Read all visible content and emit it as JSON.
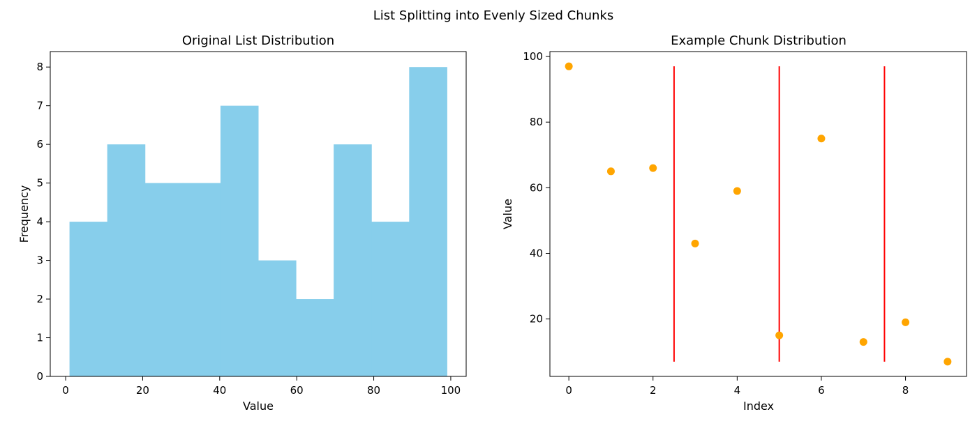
{
  "figure": {
    "suptitle": "List Splitting into Evenly Sized Chunks"
  },
  "colors": {
    "histogram_fill": "#87CEEB",
    "scatter_points": "#FFA500",
    "chunk_lines": "#FF0000"
  },
  "chart_data": [
    {
      "type": "bar",
      "subtype": "histogram",
      "title": "Original List Distribution",
      "xlabel": "Value",
      "ylabel": "Frequency",
      "bin_edges": [
        1,
        10.8,
        20.6,
        30.4,
        40.2,
        50,
        59.8,
        69.6,
        79.4,
        89.2,
        99
      ],
      "values": [
        4,
        6,
        5,
        5,
        7,
        3,
        2,
        6,
        4,
        8
      ],
      "xlim": [
        -4,
        104
      ],
      "ylim": [
        0,
        8.4
      ],
      "xticks": [
        0,
        20,
        40,
        60,
        80,
        100
      ],
      "yticks": [
        0,
        1,
        2,
        3,
        4,
        5,
        6,
        7,
        8
      ],
      "grid": false
    },
    {
      "type": "scatter",
      "title": "Example Chunk Distribution",
      "xlabel": "Index",
      "ylabel": "Value",
      "x": [
        0,
        1,
        2,
        3,
        4,
        5,
        6,
        7,
        8,
        9
      ],
      "y": [
        97,
        65,
        66,
        43,
        59,
        15,
        75,
        13,
        19,
        7
      ],
      "chunk_boundaries": [
        2.5,
        5,
        7.5
      ],
      "chunk_line_range": [
        7,
        97
      ],
      "xlim": [
        -0.45,
        9.45
      ],
      "ylim": [
        2.5,
        101.5
      ],
      "xticks": [
        0,
        2,
        4,
        6,
        8
      ],
      "yticks": [
        20,
        40,
        60,
        80,
        100
      ],
      "grid": false
    }
  ]
}
